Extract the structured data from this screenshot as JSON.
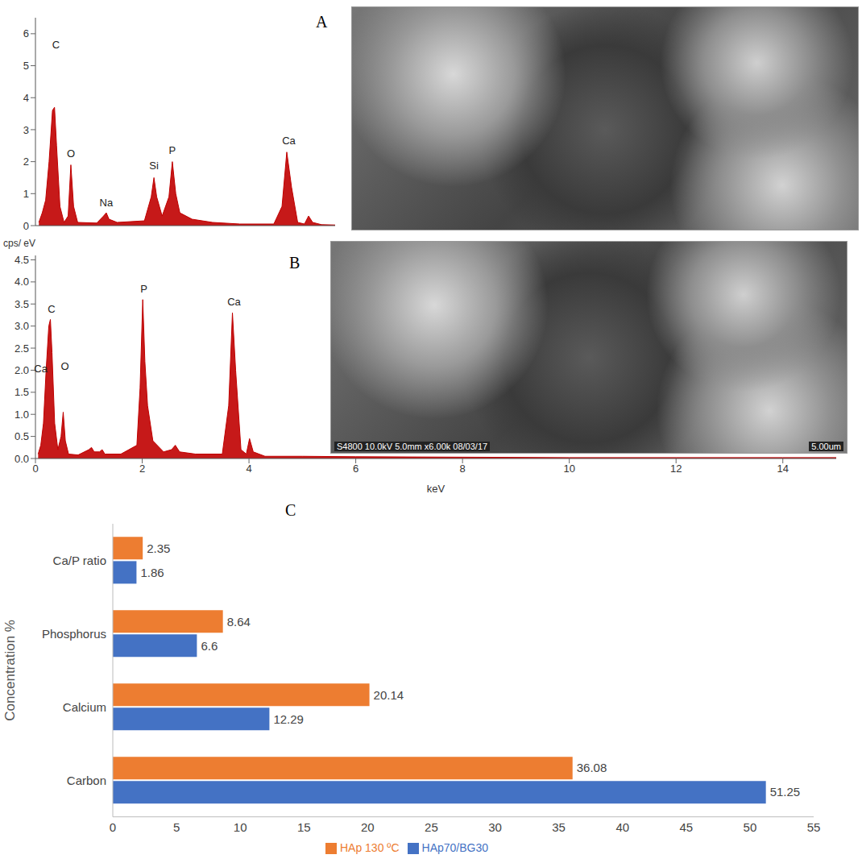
{
  "chart_data": [
    {
      "type": "area",
      "title": "A",
      "color": "#c00000",
      "x": [
        0.05,
        0.1,
        0.15,
        0.2,
        0.25,
        0.28,
        0.31,
        0.36,
        0.42,
        0.48,
        0.52,
        0.56,
        0.62,
        0.9,
        1.0,
        1.04,
        1.08,
        1.2,
        1.6,
        1.7,
        1.74,
        1.78,
        1.86,
        1.96,
        2.01,
        2.06,
        2.12,
        2.3,
        2.6,
        3.0,
        3.5,
        3.62,
        3.69,
        3.76,
        3.85,
        3.95,
        4.01,
        4.07,
        4.2,
        4.4
      ],
      "values": [
        0.1,
        0.4,
        0.8,
        2.0,
        3.6,
        3.7,
        2.5,
        0.6,
        0.1,
        0.3,
        1.9,
        0.6,
        0.1,
        0.08,
        0.3,
        0.4,
        0.2,
        0.1,
        0.15,
        0.9,
        1.5,
        0.9,
        0.3,
        0.9,
        2.0,
        1.0,
        0.4,
        0.2,
        0.1,
        0.05,
        0.05,
        0.6,
        2.3,
        1.2,
        0.1,
        0.05,
        0.3,
        0.1,
        0.03,
        0.02
      ],
      "xlim": [
        0,
        4.4
      ],
      "ylim": [
        0,
        6.5
      ],
      "yticks": [
        0,
        1,
        2,
        3,
        4,
        5,
        6
      ],
      "tick_labels": "y",
      "annotations": [
        {
          "text": "C",
          "x": 0.3,
          "y": 5.4
        },
        {
          "text": "O",
          "x": 0.52,
          "y": 2.0
        },
        {
          "text": "Na",
          "x": 1.04,
          "y": 0.45
        },
        {
          "text": "Si",
          "x": 1.74,
          "y": 1.6
        },
        {
          "text": "P",
          "x": 2.01,
          "y": 2.1
        },
        {
          "text": "Ca",
          "x": 3.72,
          "y": 2.4
        }
      ]
    },
    {
      "type": "area",
      "title": "B",
      "color": "#c00000",
      "x": [
        0.05,
        0.1,
        0.15,
        0.2,
        0.25,
        0.28,
        0.31,
        0.36,
        0.42,
        0.48,
        0.52,
        0.56,
        0.62,
        0.8,
        1.0,
        1.05,
        1.1,
        1.2,
        1.25,
        1.3,
        1.6,
        1.9,
        1.96,
        2.01,
        2.05,
        2.1,
        2.2,
        2.4,
        2.55,
        2.62,
        2.7,
        3.0,
        3.5,
        3.62,
        3.69,
        3.75,
        3.85,
        3.95,
        4.01,
        4.08,
        4.3,
        5,
        6,
        8,
        10,
        12,
        14,
        15
      ],
      "values": [
        0.1,
        0.3,
        0.8,
        2.0,
        3.0,
        3.15,
        2.4,
        0.8,
        0.2,
        0.5,
        1.05,
        0.4,
        0.1,
        0.08,
        0.2,
        0.25,
        0.15,
        0.15,
        0.2,
        0.1,
        0.1,
        0.3,
        1.6,
        3.6,
        2.2,
        1.2,
        0.4,
        0.15,
        0.2,
        0.3,
        0.15,
        0.1,
        0.1,
        1.2,
        3.3,
        2.0,
        0.2,
        0.1,
        0.45,
        0.15,
        0.05,
        0.05,
        0.04,
        0.03,
        0.02,
        0.02,
        0.02,
        0.02
      ],
      "xlim": [
        0,
        15
      ],
      "xticks": [
        0,
        2,
        4,
        6,
        8,
        10,
        12,
        14
      ],
      "ylim": [
        0,
        4.6
      ],
      "yticks": [
        {
          "value": 0,
          "label": "0.0"
        },
        {
          "value": 0.5,
          "label": "0.5"
        },
        {
          "value": 1,
          "label": "1.0"
        },
        {
          "value": 1.5,
          "label": "1.5"
        },
        {
          "value": 2,
          "label": "2.0"
        },
        {
          "value": 2.5,
          "label": "2.5"
        },
        {
          "value": 3,
          "label": "3.0"
        },
        {
          "value": 3.5,
          "label": "3.5"
        },
        {
          "value": 4,
          "label": "4.0"
        },
        {
          "value": 4.5,
          "label": "4.5"
        }
      ],
      "xlabel": "keV",
      "ylabel": "cps/ eV",
      "annotations": [
        {
          "text": "Ca",
          "x": 0.1,
          "y": 1.85
        },
        {
          "text": "C",
          "x": 0.3,
          "y": 3.2
        },
        {
          "text": "O",
          "x": 0.55,
          "y": 1.9
        },
        {
          "text": "P",
          "x": 2.03,
          "y": 3.65
        },
        {
          "text": "Ca",
          "x": 3.72,
          "y": 3.35
        }
      ]
    },
    {
      "type": "bar",
      "title": "C",
      "orientation": "horizontal",
      "categories": [
        "Ca/P ratio",
        "Phosphorus",
        "Calcium",
        "Carbon"
      ],
      "series": [
        {
          "name": "HAp 130 ºC",
          "color": "#ed7d31",
          "values": [
            2.35,
            8.64,
            20.14,
            36.08
          ]
        },
        {
          "name": "HAp70/BG30",
          "color": "#4472c4",
          "values": [
            1.86,
            6.6,
            12.29,
            51.25
          ]
        }
      ],
      "xlim": [
        0,
        55
      ],
      "xticks": [
        0,
        5,
        10,
        15,
        20,
        25,
        30,
        35,
        40,
        45,
        50,
        55
      ],
      "ylabel": "Concentration %",
      "data_labels": true,
      "legend": "bottom",
      "grid": false
    }
  ],
  "images": {
    "B": {
      "info": "S4800 10.0kV 5.0mm x6.00k 08/03/17",
      "scale": "5.00um"
    }
  }
}
